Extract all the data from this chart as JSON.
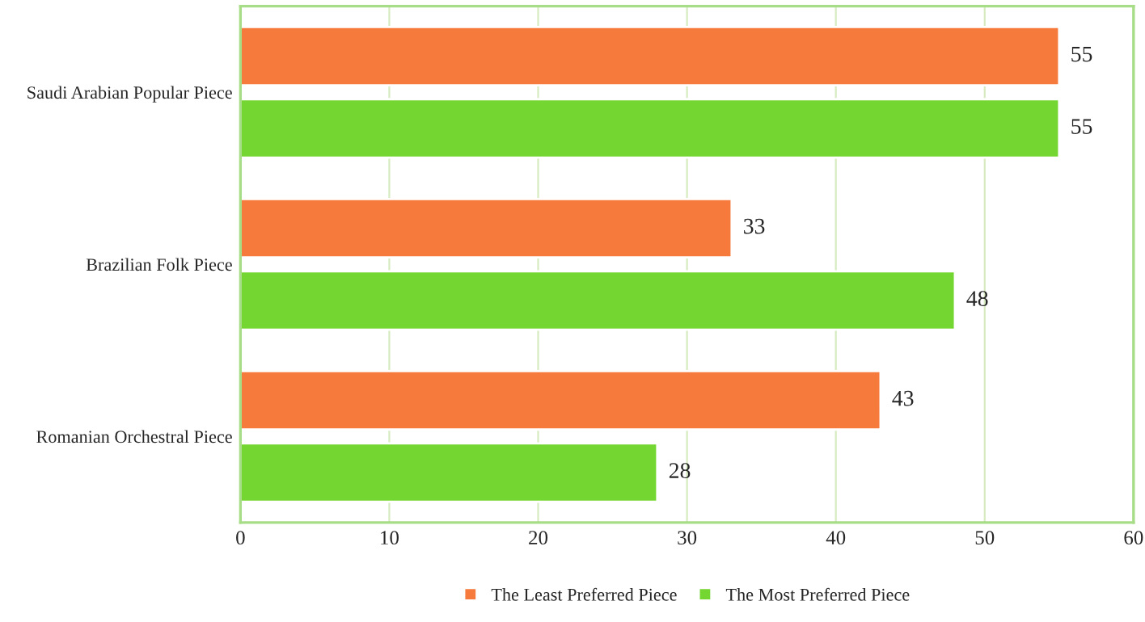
{
  "chart_data": {
    "type": "bar",
    "orientation": "horizontal",
    "categories": [
      "Saudi Arabian Popular Piece",
      "Brazilian Folk Piece",
      "Romanian Orchestral Piece"
    ],
    "series": [
      {
        "name": "The Least Preferred Piece",
        "color": "#f57a3c",
        "values": [
          55,
          33,
          43
        ]
      },
      {
        "name": "The Most Preferred Piece",
        "color": "#74d630",
        "values": [
          55,
          48,
          28
        ]
      }
    ],
    "xlim": [
      0,
      60
    ],
    "xticks": [
      0,
      10,
      20,
      30,
      40,
      50,
      60
    ],
    "grid": "x",
    "legend": "bottom",
    "data_labels": true
  }
}
